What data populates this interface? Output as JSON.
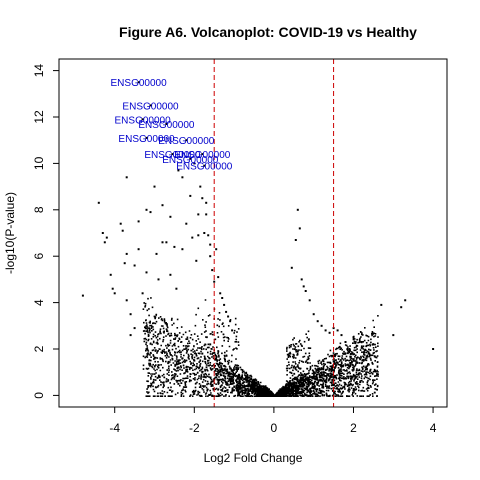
{
  "chart_data": {
    "type": "scatter",
    "title": "Figure A6. Volcanoplot: COVID-19 vs Healthy",
    "xlabel": "Log2 Fold Change",
    "ylabel": "-log10(P-value)",
    "xlim": [
      -5.4,
      4.35
    ],
    "ylim": [
      -0.5,
      14.5
    ],
    "x_ticks": [
      -4,
      -2,
      0,
      2,
      4
    ],
    "y_ticks": [
      0,
      2,
      4,
      6,
      8,
      10,
      12,
      14
    ],
    "grid": false,
    "point_color": "#000000",
    "threshold_lines": {
      "x": [
        -1.5,
        1.5
      ],
      "color": "#cc0000",
      "style": "dashed"
    },
    "labeled_points": {
      "color": "#0000cc",
      "points": [
        {
          "x": -3.4,
          "y": 13.5,
          "label": "ENSG00000"
        },
        {
          "x": -3.1,
          "y": 12.5,
          "label": "ENSG00000"
        },
        {
          "x": -3.3,
          "y": 11.9,
          "label": "ENSG00000"
        },
        {
          "x": -2.7,
          "y": 11.7,
          "label": "ENSG00000"
        },
        {
          "x": -3.2,
          "y": 11.1,
          "label": "ENSG00000"
        },
        {
          "x": -2.2,
          "y": 11.0,
          "label": "ENSG00000"
        },
        {
          "x": -2.55,
          "y": 10.4,
          "label": "ENSG00000"
        },
        {
          "x": -1.8,
          "y": 10.4,
          "label": "ENSG00000"
        },
        {
          "x": -2.1,
          "y": 10.2,
          "label": "ENSG00000"
        },
        {
          "x": -1.75,
          "y": 9.9,
          "label": "ENSG00000"
        }
      ]
    },
    "series": [
      {
        "x": [
          -4.8,
          -4.4,
          -4.3,
          -4.25,
          -4.2,
          -4.1,
          -4.05,
          -4.0,
          -3.85,
          -3.8,
          -3.75,
          -3.7,
          -3.6,
          -3.5,
          -3.4,
          -3.3,
          -3.2,
          -3.1,
          -3.0,
          -2.95,
          -2.9,
          -2.8,
          -2.7,
          -2.6,
          -2.5,
          -2.45,
          -2.4,
          -2.3,
          -2.2,
          -2.1,
          -2.05,
          -2.0,
          -1.95,
          -1.9,
          -1.85,
          -1.8,
          -1.75,
          -1.7,
          -1.65,
          -1.6,
          -1.55,
          -1.5,
          -1.45,
          -1.4,
          -1.35,
          -1.3,
          -1.25,
          -1.2,
          -1.15,
          -1.1,
          -1.05,
          -3.7,
          -3.5,
          -3.2,
          -2.8,
          -2.6,
          -2.3,
          -1.9,
          -1.7,
          -1.6,
          0.45,
          0.55,
          0.6,
          0.65,
          0.7,
          0.75,
          0.8,
          0.9,
          1.0,
          1.1,
          1.2,
          1.3,
          1.4,
          1.5,
          1.6,
          1.7,
          1.8,
          1.9,
          2.0,
          2.2,
          2.5,
          2.7,
          3.0,
          3.2,
          3.3,
          4.0,
          -3.7,
          -3.4,
          -3.6,
          -2.9,
          -2.7,
          -2.5,
          -2.2,
          -2.0,
          -2.4,
          -1.8,
          -1.6,
          -1.5,
          0.5,
          0.6,
          0.7,
          0.85,
          1.05,
          1.25
        ],
        "y": [
          4.3,
          8.3,
          7.0,
          6.6,
          6.8,
          5.2,
          4.6,
          4.4,
          7.4,
          7.1,
          5.7,
          4.1,
          3.5,
          2.9,
          6.3,
          4.4,
          8.0,
          7.9,
          9.0,
          6.1,
          5.0,
          8.2,
          6.6,
          5.2,
          6.4,
          4.6,
          9.7,
          9.4,
          7.4,
          8.6,
          6.8,
          10.0,
          5.8,
          7.8,
          9.0,
          8.5,
          7.0,
          8.3,
          6.9,
          6.0,
          5.4,
          4.9,
          6.3,
          5.1,
          4.4,
          4.2,
          3.9,
          3.6,
          3.4,
          3.2,
          2.8,
          6.1,
          5.6,
          5.3,
          6.6,
          7.7,
          6.3,
          6.9,
          7.8,
          6.5,
          5.5,
          6.7,
          8.0,
          7.2,
          5.0,
          4.7,
          4.5,
          4.1,
          3.5,
          3.2,
          3.0,
          2.8,
          2.7,
          2.9,
          2.8,
          2.6,
          2.3,
          2.0,
          2.5,
          2.3,
          2.2,
          3.9,
          2.6,
          3.8,
          4.1,
          2.0,
          9.4,
          7.5,
          2.6,
          1.3,
          0.6,
          0.8,
          1.1,
          1.5,
          0.5,
          1.8,
          2.2,
          0.7,
          1.2,
          1.9,
          0.9,
          1.4,
          0.7,
          1.0
        ]
      }
    ]
  }
}
